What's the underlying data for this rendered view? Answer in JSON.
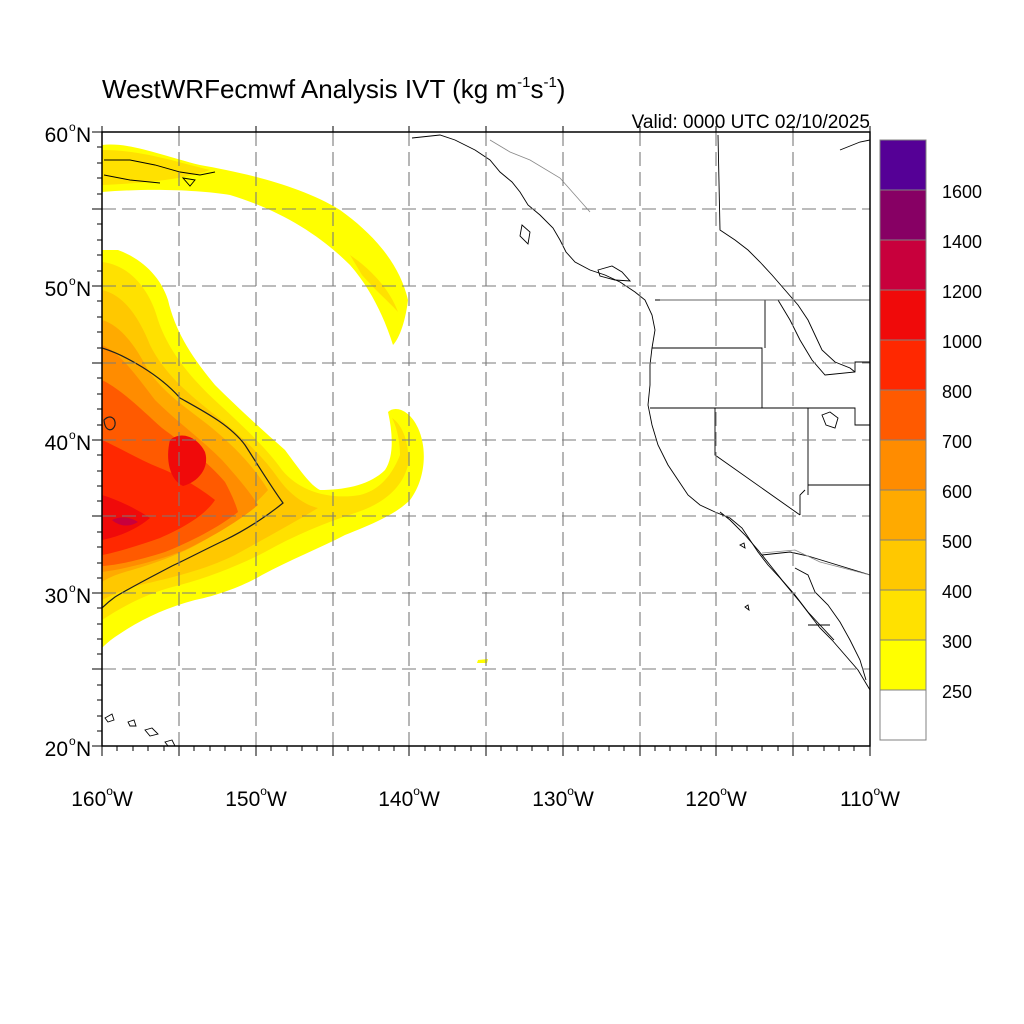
{
  "title": {
    "main": "WestWRFecmwf Analysis IVT (kg m",
    "exp1": "-1",
    "mid": "s",
    "exp2": "-1",
    "close": ")"
  },
  "valid": "Valid: 0000 UTC 02/10/2025",
  "lat_ticks": [
    {
      "deg": "60",
      "hemi": "N",
      "value": 60
    },
    {
      "deg": "50",
      "hemi": "N",
      "value": 50
    },
    {
      "deg": "40",
      "hemi": "N",
      "value": 40
    },
    {
      "deg": "30",
      "hemi": "N",
      "value": 30
    },
    {
      "deg": "20",
      "hemi": "N",
      "value": 20
    }
  ],
  "lon_ticks": [
    {
      "deg": "160",
      "hemi": "W",
      "value": -160
    },
    {
      "deg": "150",
      "hemi": "W",
      "value": -150
    },
    {
      "deg": "140",
      "hemi": "W",
      "value": -140
    },
    {
      "deg": "130",
      "hemi": "W",
      "value": -130
    },
    {
      "deg": "120",
      "hemi": "W",
      "value": -120
    },
    {
      "deg": "110",
      "hemi": "W",
      "value": -110
    }
  ],
  "colorbar": {
    "levels": [
      "250",
      "300",
      "400",
      "500",
      "600",
      "700",
      "800",
      "1000",
      "1200",
      "1400",
      "1600"
    ],
    "colors": [
      "#ffffff",
      "#ffff00",
      "#ffe100",
      "#ffc800",
      "#ffaa00",
      "#ff8c00",
      "#ff5a00",
      "#ff2800",
      "#f00a0a",
      "#c8003c",
      "#870064",
      "#550096"
    ]
  }
}
